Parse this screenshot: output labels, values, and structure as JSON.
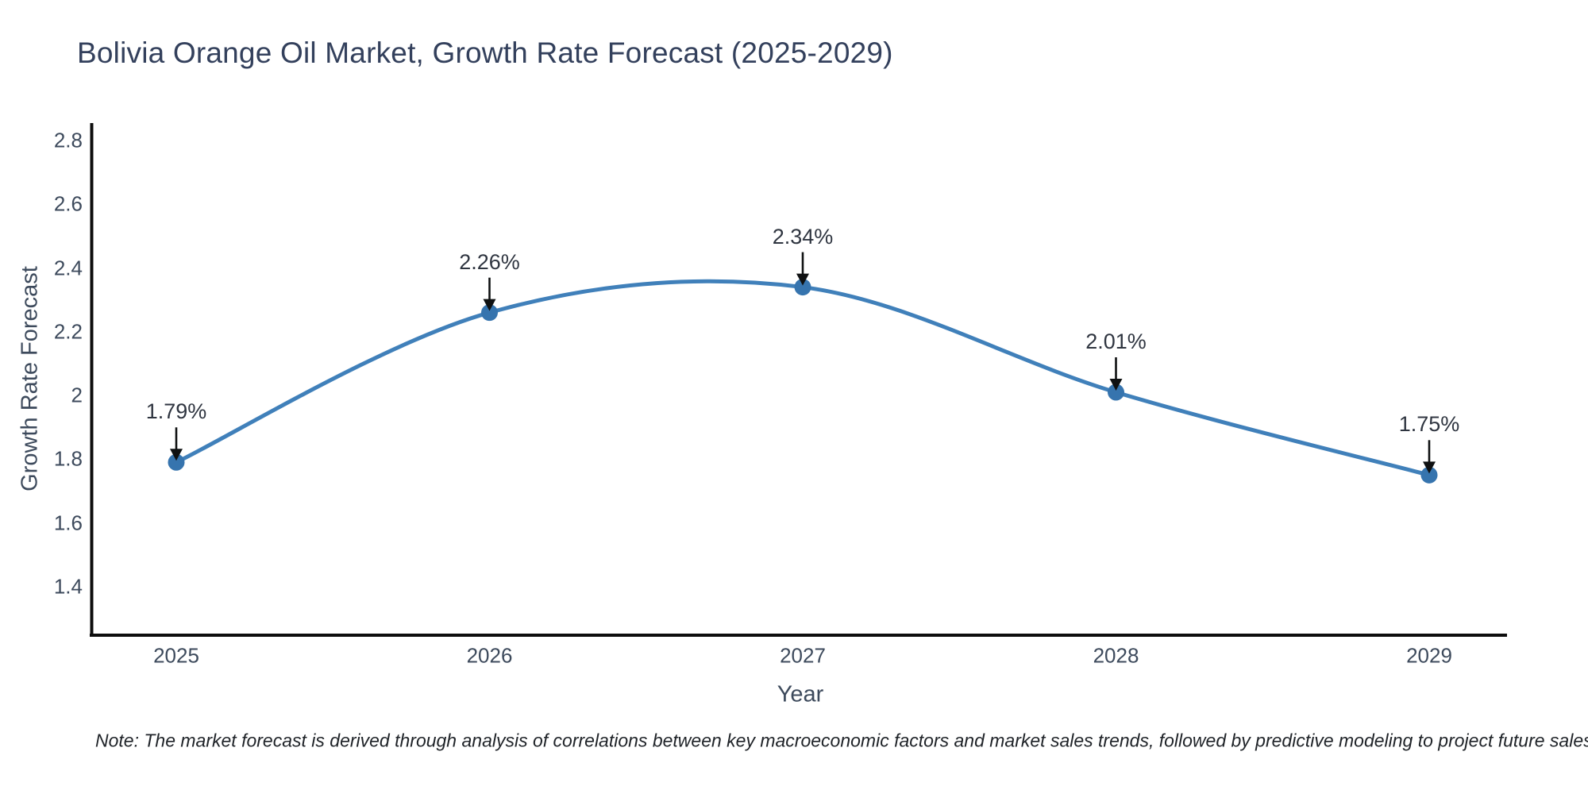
{
  "title": "Bolivia Orange Oil Market, Growth Rate Forecast (2025-2029)",
  "note": "Note: The market forecast is derived through analysis of correlations between key macroeconomic factors and market sales trends, followed by predictive modeling to project future sales",
  "chart_data": {
    "type": "line",
    "title": "Bolivia Orange Oil Market, Growth Rate Forecast (2025-2029)",
    "xlabel": "Year",
    "ylabel": "Growth Rate Forecast",
    "categories": [
      "2025",
      "2026",
      "2027",
      "2028",
      "2029"
    ],
    "values": [
      1.79,
      2.26,
      2.34,
      2.01,
      1.75
    ],
    "point_labels": [
      "1.79%",
      "2.26%",
      "2.34%",
      "2.01%",
      "1.75%"
    ],
    "ytick_values": [
      2.8,
      2.6,
      2.4,
      2.2,
      2.0,
      1.8,
      1.6,
      1.4
    ],
    "ytick_labels": [
      "2.8",
      "2.6",
      "2.4",
      "2.2",
      "2",
      "1.8",
      "1.6",
      "1.4"
    ],
    "ylim": [
      1.23,
      2.85
    ],
    "grid": false,
    "legend": false,
    "smooth_curve": true,
    "annotation_style": "label-with-down-arrow",
    "colors": {
      "line": "#4080ba",
      "marker": "#3674ae",
      "arrow": "#0f1112",
      "axis_spine": "#0d0d0d",
      "title_text": "#33405c",
      "axis_text": "#3d4a5c",
      "label_text": "#2f3540",
      "background": "#ffffff"
    }
  }
}
